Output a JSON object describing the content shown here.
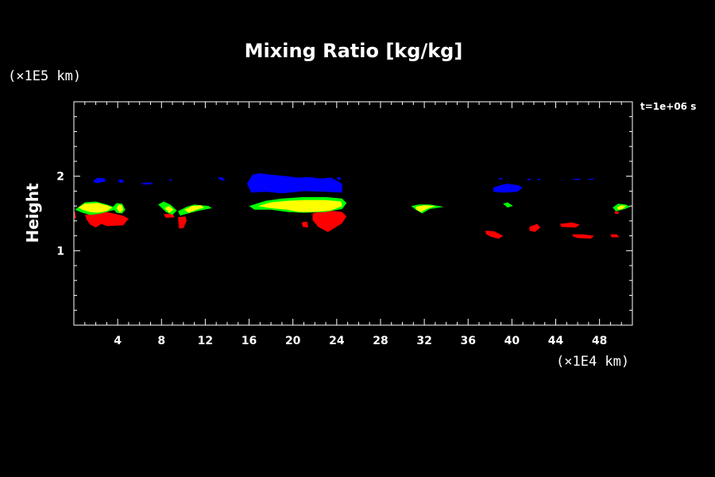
{
  "chart_data": {
    "type": "contour",
    "title": "Mixing Ratio [kg/kg]",
    "ylabel": "Height",
    "x_unit": "(×1E4 km)",
    "y_unit": "(×1E5 km)",
    "time_label": "t=1e+06 s",
    "xlim": [
      0,
      51
    ],
    "ylim": [
      0,
      3
    ],
    "x_ticks": [
      4,
      8,
      12,
      16,
      20,
      24,
      28,
      32,
      36,
      40,
      44,
      48
    ],
    "y_ticks": [
      1,
      2
    ],
    "x_minor_step": 1,
    "y_minor_step": 0.2,
    "levels": [
      {
        "color": "#0000ff"
      },
      {
        "color": "#00ff00"
      },
      {
        "color": "#ffff00"
      },
      {
        "color": "#ff0000"
      }
    ],
    "regions": [
      {
        "level": 0,
        "points": [
          [
            1.8,
            1.94
          ],
          [
            2.2,
            1.98
          ],
          [
            2.8,
            1.97
          ],
          [
            2.9,
            1.93
          ],
          [
            2.2,
            1.91
          ],
          [
            1.8,
            1.92
          ]
        ]
      },
      {
        "level": 0,
        "points": [
          [
            4.0,
            1.95
          ],
          [
            4.4,
            1.96
          ],
          [
            4.6,
            1.92
          ],
          [
            4.2,
            1.91
          ]
        ]
      },
      {
        "level": 0,
        "points": [
          [
            6.2,
            1.91
          ],
          [
            7.2,
            1.92
          ],
          [
            7.0,
            1.89
          ],
          [
            6.3,
            1.89
          ]
        ]
      },
      {
        "level": 0,
        "points": [
          [
            8.7,
            1.96
          ],
          [
            9.0,
            1.95
          ],
          [
            8.8,
            1.93
          ]
        ]
      },
      {
        "level": 0,
        "points": [
          [
            13.2,
            1.99
          ],
          [
            13.6,
            1.98
          ],
          [
            13.8,
            1.94
          ],
          [
            13.3,
            1.95
          ]
        ]
      },
      {
        "level": 0,
        "points": [
          [
            15.8,
            1.9
          ],
          [
            16.3,
            2.02
          ],
          [
            17.0,
            2.04
          ],
          [
            18.0,
            2.02
          ],
          [
            19.5,
            2.0
          ],
          [
            20.5,
            1.98
          ],
          [
            21.5,
            1.99
          ],
          [
            22.5,
            1.97
          ],
          [
            23.5,
            1.98
          ],
          [
            24.5,
            1.9
          ],
          [
            24.5,
            1.78
          ],
          [
            23.0,
            1.79
          ],
          [
            21.0,
            1.8
          ],
          [
            19.0,
            1.77
          ],
          [
            17.5,
            1.79
          ],
          [
            16.2,
            1.78
          ]
        ]
      },
      {
        "level": 0,
        "points": [
          [
            24.0,
            1.98
          ],
          [
            24.3,
            1.99
          ],
          [
            24.4,
            1.95
          ],
          [
            24.1,
            1.95
          ]
        ]
      },
      {
        "level": 0,
        "points": [
          [
            38.7,
            1.97
          ],
          [
            39.2,
            1.98
          ],
          [
            39.0,
            1.95
          ]
        ]
      },
      {
        "level": 0,
        "points": [
          [
            38.3,
            1.85
          ],
          [
            39.5,
            1.9
          ],
          [
            40.5,
            1.88
          ],
          [
            41.0,
            1.85
          ],
          [
            40.5,
            1.79
          ],
          [
            39.2,
            1.78
          ],
          [
            38.3,
            1.79
          ]
        ]
      },
      {
        "level": 0,
        "points": [
          [
            41.3,
            1.96
          ],
          [
            41.8,
            1.97
          ],
          [
            41.6,
            1.94
          ]
        ]
      },
      {
        "level": 0,
        "points": [
          [
            42.3,
            1.96
          ],
          [
            42.6,
            1.97
          ],
          [
            42.5,
            1.94
          ]
        ]
      },
      {
        "level": 0,
        "points": [
          [
            45.5,
            1.96
          ],
          [
            46.3,
            1.97
          ],
          [
            46.2,
            1.95
          ],
          [
            45.6,
            1.95
          ]
        ]
      },
      {
        "level": 0,
        "points": [
          [
            46.8,
            1.96
          ],
          [
            47.5,
            1.97
          ],
          [
            47.4,
            1.95
          ]
        ]
      },
      {
        "level": 3,
        "points": [
          [
            -0.4,
            1.5
          ],
          [
            0.1,
            1.52
          ],
          [
            0.2,
            1.44
          ],
          [
            -0.4,
            1.42
          ]
        ]
      },
      {
        "level": 3,
        "points": [
          [
            1.0,
            1.48
          ],
          [
            2.0,
            1.5
          ],
          [
            3.0,
            1.52
          ],
          [
            4.5,
            1.47
          ],
          [
            5.0,
            1.43
          ],
          [
            4.5,
            1.34
          ],
          [
            3.0,
            1.33
          ],
          [
            2.5,
            1.36
          ],
          [
            2.0,
            1.31
          ],
          [
            1.5,
            1.35
          ],
          [
            1.2,
            1.41
          ]
        ]
      },
      {
        "level": 3,
        "points": [
          [
            8.2,
            1.49
          ],
          [
            9.0,
            1.5
          ],
          [
            9.2,
            1.45
          ],
          [
            8.4,
            1.44
          ]
        ]
      },
      {
        "level": 3,
        "points": [
          [
            9.5,
            1.45
          ],
          [
            10.2,
            1.46
          ],
          [
            10.3,
            1.4
          ],
          [
            10.0,
            1.3
          ],
          [
            9.6,
            1.3
          ]
        ]
      },
      {
        "level": 3,
        "points": [
          [
            21.8,
            1.5
          ],
          [
            23.0,
            1.54
          ],
          [
            24.5,
            1.52
          ],
          [
            24.9,
            1.46
          ],
          [
            24.5,
            1.37
          ],
          [
            23.2,
            1.25
          ],
          [
            22.3,
            1.32
          ],
          [
            21.8,
            1.41
          ]
        ]
      },
      {
        "level": 3,
        "points": [
          [
            20.8,
            1.38
          ],
          [
            21.3,
            1.39
          ],
          [
            21.4,
            1.31
          ],
          [
            20.9,
            1.32
          ]
        ]
      },
      {
        "level": 3,
        "points": [
          [
            37.6,
            1.27
          ],
          [
            38.4,
            1.26
          ],
          [
            39.2,
            1.2
          ],
          [
            38.8,
            1.16
          ],
          [
            38.0,
            1.19
          ],
          [
            37.6,
            1.23
          ]
        ]
      },
      {
        "level": 3,
        "points": [
          [
            41.6,
            1.32
          ],
          [
            42.3,
            1.36
          ],
          [
            42.6,
            1.31
          ],
          [
            42.1,
            1.25
          ],
          [
            41.6,
            1.27
          ]
        ]
      },
      {
        "level": 3,
        "points": [
          [
            44.4,
            1.36
          ],
          [
            45.5,
            1.38
          ],
          [
            46.2,
            1.35
          ],
          [
            45.8,
            1.31
          ],
          [
            44.5,
            1.32
          ]
        ]
      },
      {
        "level": 3,
        "points": [
          [
            45.5,
            1.22
          ],
          [
            46.5,
            1.22
          ],
          [
            47.5,
            1.2
          ],
          [
            47.2,
            1.16
          ],
          [
            46.0,
            1.17
          ],
          [
            45.6,
            1.19
          ]
        ]
      },
      {
        "level": 3,
        "points": [
          [
            49.0,
            1.22
          ],
          [
            49.6,
            1.22
          ],
          [
            49.8,
            1.18
          ],
          [
            49.1,
            1.18
          ]
        ]
      },
      {
        "level": 3,
        "points": [
          [
            49.4,
            1.53
          ],
          [
            49.8,
            1.52
          ],
          [
            49.7,
            1.49
          ],
          [
            49.4,
            1.5
          ]
        ]
      },
      {
        "level": 1,
        "points": [
          [
            0.1,
            1.55
          ],
          [
            1.0,
            1.65
          ],
          [
            2.0,
            1.66
          ],
          [
            3.0,
            1.62
          ],
          [
            3.6,
            1.59
          ],
          [
            3.8,
            1.55
          ],
          [
            3.2,
            1.53
          ],
          [
            2.5,
            1.5
          ],
          [
            1.5,
            1.48
          ],
          [
            0.8,
            1.51
          ]
        ]
      },
      {
        "level": 1,
        "points": [
          [
            3.5,
            1.58
          ],
          [
            3.9,
            1.64
          ],
          [
            4.4,
            1.63
          ],
          [
            4.7,
            1.55
          ],
          [
            4.4,
            1.5
          ],
          [
            3.9,
            1.51
          ]
        ]
      },
      {
        "level": 1,
        "points": [
          [
            7.7,
            1.62
          ],
          [
            8.2,
            1.66
          ],
          [
            8.8,
            1.62
          ],
          [
            9.4,
            1.54
          ],
          [
            9.0,
            1.48
          ],
          [
            8.4,
            1.52
          ]
        ]
      },
      {
        "level": 1,
        "points": [
          [
            9.5,
            1.53
          ],
          [
            10.3,
            1.59
          ],
          [
            11.0,
            1.62
          ],
          [
            12.3,
            1.6
          ],
          [
            12.6,
            1.57
          ],
          [
            11.5,
            1.54
          ],
          [
            10.4,
            1.5
          ],
          [
            9.7,
            1.47
          ]
        ]
      },
      {
        "level": 1,
        "points": [
          [
            16.0,
            1.6
          ],
          [
            17.5,
            1.67
          ],
          [
            19.0,
            1.7
          ],
          [
            21.0,
            1.72
          ],
          [
            23.0,
            1.72
          ],
          [
            24.5,
            1.7
          ],
          [
            24.9,
            1.64
          ],
          [
            24.5,
            1.56
          ],
          [
            23.0,
            1.52
          ],
          [
            21.0,
            1.51
          ],
          [
            19.5,
            1.52
          ],
          [
            18.0,
            1.55
          ],
          [
            16.5,
            1.55
          ]
        ]
      },
      {
        "level": 1,
        "points": [
          [
            30.8,
            1.6
          ],
          [
            31.5,
            1.62
          ],
          [
            32.5,
            1.62
          ],
          [
            33.8,
            1.59
          ],
          [
            32.5,
            1.56
          ],
          [
            31.8,
            1.5
          ],
          [
            31.2,
            1.55
          ]
        ]
      },
      {
        "level": 1,
        "points": [
          [
            39.2,
            1.63
          ],
          [
            39.6,
            1.65
          ],
          [
            40.1,
            1.6
          ],
          [
            39.6,
            1.58
          ]
        ]
      },
      {
        "level": 1,
        "points": [
          [
            49.2,
            1.58
          ],
          [
            49.7,
            1.63
          ],
          [
            50.4,
            1.62
          ],
          [
            50.8,
            1.59
          ],
          [
            50.3,
            1.56
          ],
          [
            49.5,
            1.53
          ]
        ]
      },
      {
        "level": 2,
        "points": [
          [
            0.4,
            1.58
          ],
          [
            1.0,
            1.63
          ],
          [
            2.2,
            1.64
          ],
          [
            3.0,
            1.61
          ],
          [
            3.5,
            1.58
          ],
          [
            3.0,
            1.53
          ],
          [
            2.2,
            1.51
          ],
          [
            1.4,
            1.52
          ],
          [
            0.8,
            1.55
          ]
        ]
      },
      {
        "level": 2,
        "points": [
          [
            3.9,
            1.57
          ],
          [
            4.1,
            1.62
          ],
          [
            4.4,
            1.61
          ],
          [
            4.5,
            1.55
          ],
          [
            4.2,
            1.51
          ]
        ]
      },
      {
        "level": 2,
        "points": [
          [
            8.3,
            1.57
          ],
          [
            8.7,
            1.6
          ],
          [
            9.1,
            1.55
          ],
          [
            8.7,
            1.51
          ]
        ]
      },
      {
        "level": 2,
        "points": [
          [
            10.1,
            1.55
          ],
          [
            10.8,
            1.6
          ],
          [
            11.6,
            1.61
          ],
          [
            11.9,
            1.58
          ],
          [
            11.2,
            1.55
          ],
          [
            10.5,
            1.51
          ]
        ]
      },
      {
        "level": 2,
        "points": [
          [
            16.8,
            1.6
          ],
          [
            18.0,
            1.65
          ],
          [
            19.5,
            1.67
          ],
          [
            21.0,
            1.68
          ],
          [
            23.0,
            1.68
          ],
          [
            24.4,
            1.66
          ],
          [
            24.5,
            1.6
          ],
          [
            23.5,
            1.54
          ],
          [
            22.0,
            1.52
          ],
          [
            20.5,
            1.52
          ],
          [
            19.5,
            1.55
          ],
          [
            18.0,
            1.57
          ]
        ]
      },
      {
        "level": 2,
        "points": [
          [
            31.2,
            1.59
          ],
          [
            32.0,
            1.61
          ],
          [
            33.0,
            1.6
          ],
          [
            32.2,
            1.56
          ],
          [
            31.7,
            1.52
          ],
          [
            31.3,
            1.55
          ]
        ]
      },
      {
        "level": 2,
        "points": [
          [
            49.6,
            1.58
          ],
          [
            50.0,
            1.61
          ],
          [
            50.4,
            1.6
          ],
          [
            50.1,
            1.56
          ],
          [
            49.7,
            1.55
          ]
        ]
      }
    ]
  }
}
